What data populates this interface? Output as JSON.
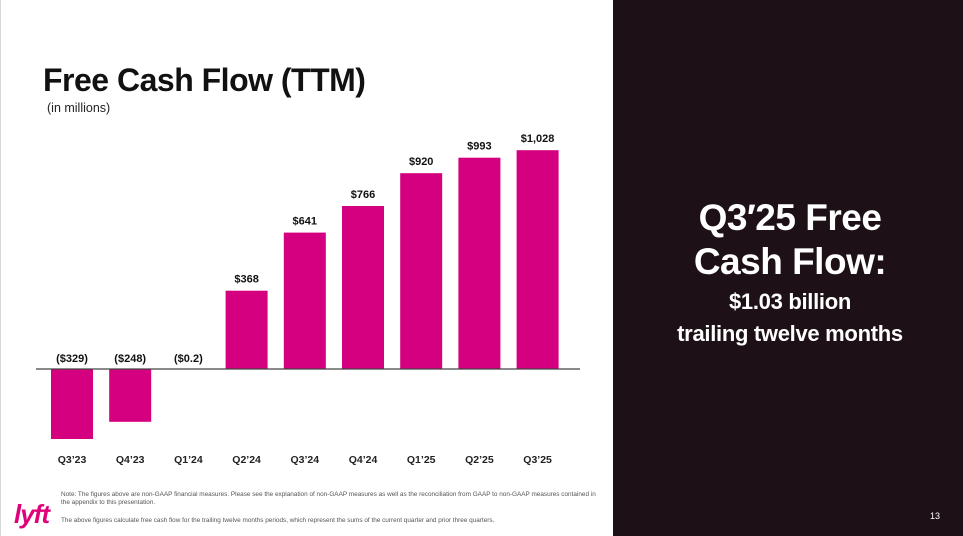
{
  "slide": {
    "title": "Free Cash Flow (TTM)",
    "subtitle": "(in millions)",
    "notes": [
      "Note: The figures above are non-GAAP financial measures. Please see the explanation of non-GAAP measures as well as the reconciliation from GAAP to non-GAAP measures contained in the appendix to this presentation.",
      "The above figures calculate free cash flow for the trailing twelve months periods, which represent the sums of the current quarter and prior three quarters."
    ],
    "logo_text": "lyft",
    "page_number": "13"
  },
  "highlight": {
    "headline": "Q3…25 Free Cash Flow:",
    "value": "$1.03 billion",
    "description": "trailing twelve months"
  },
  "colors": {
    "bar": "#d4007f",
    "axis": "#444444",
    "brand": "#e0007a",
    "dark_panel": "#1e1017"
  },
  "chart_data": {
    "type": "bar",
    "title": "Free Cash Flow (TTM)",
    "ylabel": "(in millions)",
    "xlabel": "",
    "categories": [
      "Q3'23",
      "Q4'23",
      "Q1'24",
      "Q2'24",
      "Q3'24",
      "Q4'24",
      "Q1'25",
      "Q2'25",
      "Q3'25"
    ],
    "values": [
      -329,
      -248,
      -0.2,
      368,
      641,
      766,
      920,
      993,
      1028
    ],
    "data_labels": [
      "($329)",
      "($248)",
      "($0.2)",
      "$368",
      "$641",
      "$766",
      "$920",
      "$993",
      "$1,028"
    ],
    "ylim": [
      -350,
      1100
    ],
    "grid": false,
    "legend": "none"
  }
}
